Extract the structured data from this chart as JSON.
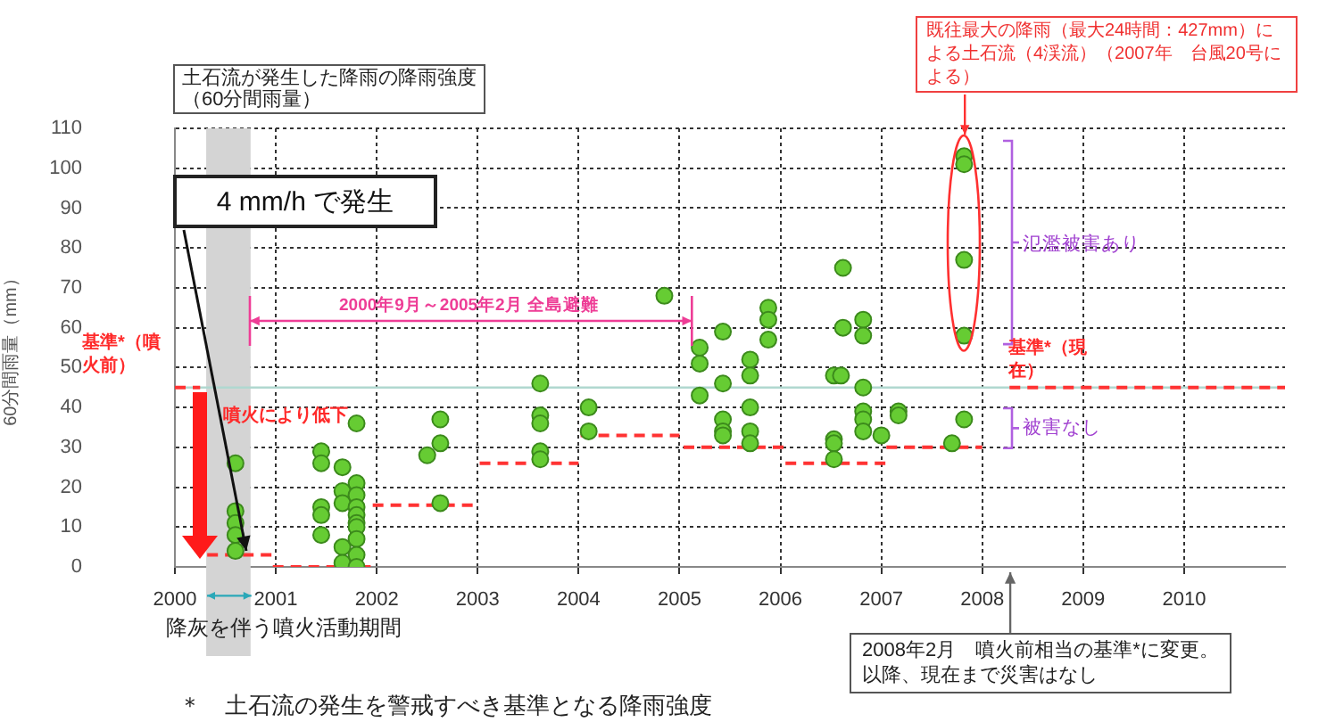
{
  "chart_data": {
    "type": "scatter",
    "ylabel": "60分間雨量（mm）",
    "xlim": [
      2000,
      2011
    ],
    "ylim": [
      0,
      110
    ],
    "xticks": [
      2000,
      2001,
      2002,
      2003,
      2004,
      2005,
      2006,
      2007,
      2008,
      2009,
      2010
    ],
    "yticks": [
      0,
      10,
      20,
      30,
      40,
      50,
      60,
      70,
      80,
      90,
      100,
      110
    ],
    "grid": true,
    "series": [
      {
        "type": "scatter",
        "color": "#66cc33",
        "marker": "circle",
        "x": [
          2000.6,
          2000.6,
          2000.6,
          2000.6,
          2000.6,
          2001.45,
          2001.45,
          2001.45,
          2001.45,
          2001.45,
          2001.66,
          2001.66,
          2001.66,
          2001.66,
          2001.66,
          2001.8,
          2001.8,
          2001.8,
          2001.8,
          2001.8,
          2001.8,
          2001.8,
          2001.8,
          2001.8,
          2001.8,
          2002.5,
          2002.63,
          2002.63,
          2002.63,
          2003.62,
          2003.62,
          2003.62,
          2003.62,
          2003.62,
          2004.1,
          2004.1,
          2004.85,
          2005.2,
          2005.2,
          2005.2,
          2005.43,
          2005.43,
          2005.43,
          2005.43,
          2005.43,
          2005.7,
          2005.7,
          2005.7,
          2005.7,
          2005.7,
          2005.88,
          2005.88,
          2005.88,
          2006.62,
          2006.62,
          2006.82,
          2006.82,
          2006.53,
          2006.53,
          2006.53,
          2006.53,
          2006.6,
          2006.82,
          2006.82,
          2006.82,
          2006.82,
          2007.0,
          2007.17,
          2007.17,
          2007.7,
          2007.82,
          2007.82,
          2007.82,
          2007.82,
          2007.82
        ],
        "values": [
          26,
          14,
          11,
          8,
          4,
          29,
          26,
          15,
          13,
          8,
          25,
          19,
          16,
          5,
          1,
          36,
          21,
          18,
          15,
          13,
          11,
          10,
          7,
          3,
          0,
          28,
          37,
          31,
          16,
          46,
          38,
          36,
          29,
          27,
          40,
          34,
          68,
          55,
          51,
          43,
          59,
          46,
          37,
          34,
          33,
          52,
          48,
          40,
          34,
          31,
          65,
          62,
          57,
          75,
          60,
          62,
          58,
          48,
          32,
          31,
          27,
          48,
          45,
          39,
          37,
          34,
          33,
          39,
          38,
          31,
          37,
          103,
          101,
          77,
          58
        ]
      },
      {
        "type": "line",
        "color": "#ff3333",
        "line_style": "dashed",
        "marker": "none",
        "x": [
          2000,
          2000.25,
          2000.28,
          2000.32,
          2000.96,
          2000.965,
          2000.97,
          2001.94,
          2001.95,
          2001.96,
          2003,
          2003.01,
          2003.02,
          2004,
          2004.01,
          2004.02,
          2005,
          2005.02,
          2005.04,
          2006.04,
          2006.045,
          2006.05,
          2007.04,
          2007.045,
          2007.05,
          2008,
          2008.1,
          2008.27,
          2011
        ],
        "values": [
          45,
          45,
          null,
          3,
          3,
          null,
          0,
          0,
          null,
          15.5,
          15.5,
          null,
          26,
          26,
          null,
          33,
          33,
          null,
          30,
          30,
          null,
          26,
          26,
          null,
          30,
          30,
          null,
          45,
          45
        ]
      }
    ],
    "ref_lines": [
      {
        "axis": "y",
        "value": 45,
        "color": "#b0d8d0"
      }
    ],
    "bands": [
      {
        "axis": "x",
        "from": 2000.31,
        "to": 2000.75,
        "label": "降灰を伴う噴火活動期間",
        "color": "#d4d4d4"
      }
    ],
    "annotations": [
      "土石流が発生した降雨の降雨強度（60分間雨量）",
      "4 mm/h で発生",
      "2000年9月～2005年2月 全島避難",
      "基準*（噴火前）",
      "噴火により低下",
      "氾濫被害あり",
      "被害なし",
      "基準*（現在）",
      "既往最大の降雨（最大24時間：427mm）による土石流（4渓流）（2007年　台風20号による）",
      "2008年2月　噴火前相当の基準*に変更。以降、現在まで災害はなし",
      "＊　土石流の発生を警戒すべき基準となる降雨強度"
    ]
  }
}
